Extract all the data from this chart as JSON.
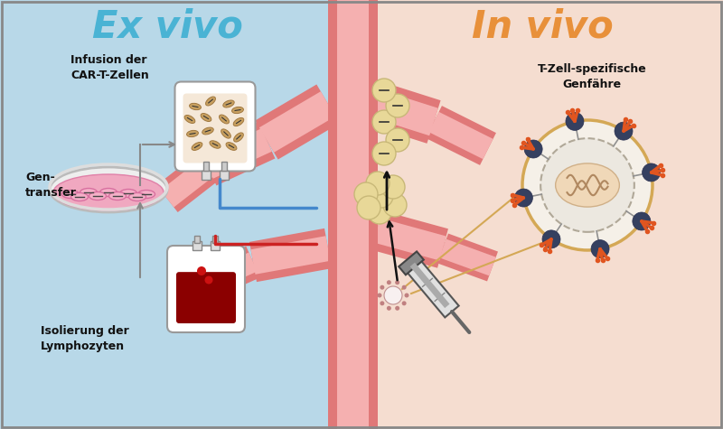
{
  "bg_left_color": "#b8d8e8",
  "bg_right_color": "#f5ddd0",
  "title_left": "Ex vivo",
  "title_right": "In vivo",
  "title_left_color": "#4ab3d4",
  "title_right_color": "#e8903a",
  "label_infusion": "Infusion der\nCAR-T-Zellen",
  "label_gentransfer": "Gen-\ntransfer",
  "label_isolierung": "Isolierung der\nLymphozyten",
  "label_genfaehre": "T-Zell-spezifische\nGenfähre"
}
